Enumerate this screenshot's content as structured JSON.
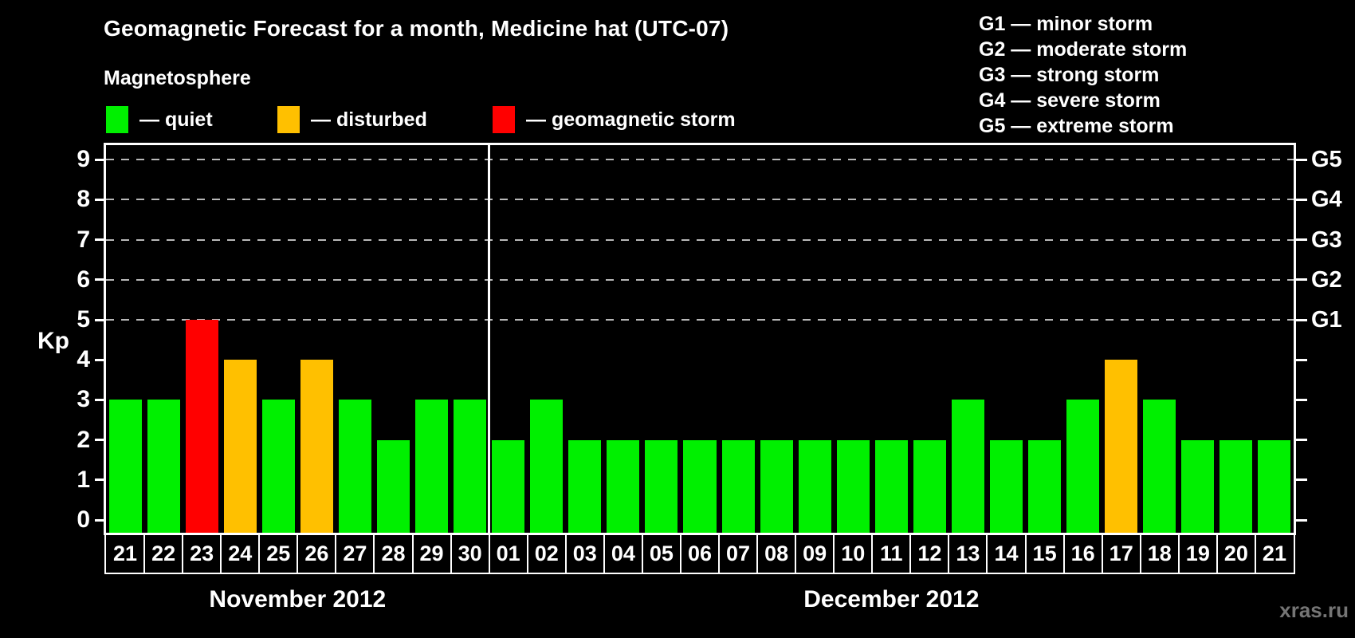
{
  "header": {
    "title": "Geomagnetic Forecast for a month, Medicine hat (UTC-07)",
    "subtitle": "Magnetosphere"
  },
  "legend": {
    "items": [
      {
        "key": "quiet",
        "label": "— quiet",
        "color": "#00F000"
      },
      {
        "key": "disturbed",
        "label": "— disturbed",
        "color": "#FFC000"
      },
      {
        "key": "storm",
        "label": "— geomagnetic storm",
        "color": "#FF0000"
      }
    ]
  },
  "g_legend": {
    "items": [
      "G1 — minor storm",
      "G2 — moderate storm",
      "G3 — strong storm",
      "G4 — severe storm",
      "G5 — extreme storm"
    ]
  },
  "watermark": "xras.ru",
  "chart_data": {
    "type": "bar",
    "title": "Geomagnetic Forecast for a month, Medicine hat (UTC-07)",
    "ylabel": "Kp",
    "ylim": [
      0,
      9.4
    ],
    "grid_on": true,
    "y_ticks": [
      0,
      1,
      2,
      3,
      4,
      5,
      6,
      7,
      8,
      9
    ],
    "g_levels": [
      {
        "kp": 5,
        "label": "G1"
      },
      {
        "kp": 6,
        "label": "G2"
      },
      {
        "kp": 7,
        "label": "G3"
      },
      {
        "kp": 8,
        "label": "G4"
      },
      {
        "kp": 9,
        "label": "G5"
      }
    ],
    "months": [
      {
        "label": "November 2012",
        "start_index": 0,
        "days": 10
      },
      {
        "label": "December 2012",
        "start_index": 10,
        "days": 21
      }
    ],
    "status_colors": {
      "quiet": "#00F000",
      "disturbed": "#FFC000",
      "storm": "#FF0000"
    },
    "bars": [
      {
        "day": "21",
        "kp": 3,
        "status": "quiet"
      },
      {
        "day": "22",
        "kp": 3,
        "status": "quiet"
      },
      {
        "day": "23",
        "kp": 5,
        "status": "storm"
      },
      {
        "day": "24",
        "kp": 4,
        "status": "disturbed"
      },
      {
        "day": "25",
        "kp": 3,
        "status": "quiet"
      },
      {
        "day": "26",
        "kp": 4,
        "status": "disturbed"
      },
      {
        "day": "27",
        "kp": 3,
        "status": "quiet"
      },
      {
        "day": "28",
        "kp": 2,
        "status": "quiet"
      },
      {
        "day": "29",
        "kp": 3,
        "status": "quiet"
      },
      {
        "day": "30",
        "kp": 3,
        "status": "quiet"
      },
      {
        "day": "01",
        "kp": 2,
        "status": "quiet"
      },
      {
        "day": "02",
        "kp": 3,
        "status": "quiet"
      },
      {
        "day": "03",
        "kp": 2,
        "status": "quiet"
      },
      {
        "day": "04",
        "kp": 2,
        "status": "quiet"
      },
      {
        "day": "05",
        "kp": 2,
        "status": "quiet"
      },
      {
        "day": "06",
        "kp": 2,
        "status": "quiet"
      },
      {
        "day": "07",
        "kp": 2,
        "status": "quiet"
      },
      {
        "day": "08",
        "kp": 2,
        "status": "quiet"
      },
      {
        "day": "09",
        "kp": 2,
        "status": "quiet"
      },
      {
        "day": "10",
        "kp": 2,
        "status": "quiet"
      },
      {
        "day": "11",
        "kp": 2,
        "status": "quiet"
      },
      {
        "day": "12",
        "kp": 2,
        "status": "quiet"
      },
      {
        "day": "13",
        "kp": 3,
        "status": "quiet"
      },
      {
        "day": "14",
        "kp": 2,
        "status": "quiet"
      },
      {
        "day": "15",
        "kp": 2,
        "status": "quiet"
      },
      {
        "day": "16",
        "kp": 3,
        "status": "quiet"
      },
      {
        "day": "17",
        "kp": 4,
        "status": "disturbed"
      },
      {
        "day": "18",
        "kp": 3,
        "status": "quiet"
      },
      {
        "day": "19",
        "kp": 2,
        "status": "quiet"
      },
      {
        "day": "20",
        "kp": 2,
        "status": "quiet"
      },
      {
        "day": "21",
        "kp": 2,
        "status": "quiet"
      }
    ]
  }
}
